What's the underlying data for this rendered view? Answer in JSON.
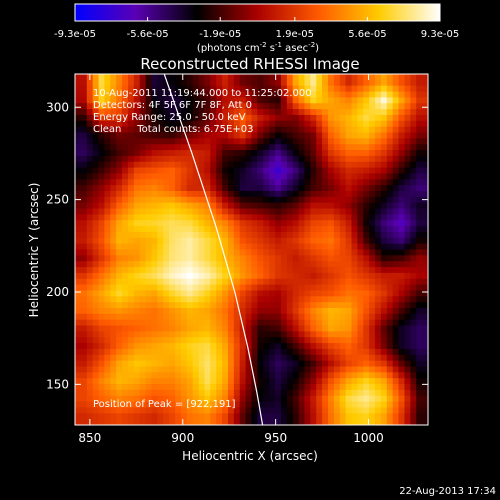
{
  "chart_data": {
    "type": "heatmap",
    "title": "Reconstructed RHESSI Image",
    "xlabel": "Heliocentric X (arcsec)",
    "ylabel": "Heliocentric Y (arcsec)",
    "xlim": [
      842,
      1032
    ],
    "ylim": [
      128,
      318
    ],
    "xticks": [
      850,
      900,
      950,
      1000
    ],
    "yticks": [
      150,
      200,
      250,
      300
    ],
    "colorbar": {
      "min": -9.3e-05,
      "max": 9.3e-05,
      "tick_values": [
        -9.3e-05,
        -5.6e-05,
        -1.9e-05,
        1.9e-05,
        5.6e-05,
        9.3e-05
      ],
      "tick_labels": [
        "-9.3e-05",
        "-5.6e-05",
        "-1.9e-05",
        "1.9e-05",
        "5.6e-05",
        "9.3e-05"
      ],
      "unit_label": "(photons cm",
      "unit_sup1": "-2",
      "unit_mid": " s",
      "unit_sup2": "-1",
      "unit_end": " asec",
      "unit_sup3": "-2",
      "unit_close": ")",
      "colors": [
        "#0000ff",
        "#5a00b4",
        "#000000",
        "#aa0000",
        "#ff5a00",
        "#ffcc00",
        "#ffffff"
      ]
    },
    "annotations": [
      "10-Aug-2011 11:19:44.000 to 11:25:02.000",
      "Detectors: 4F 5F 6F 7F 8F, Att 0",
      "Energy Range: 25.0 - 50.0 keV",
      "Clean     Total counts: 6.75E+03"
    ],
    "peak_label": "Position of Peak = [922,191]",
    "peak": [
      922,
      191
    ],
    "limb": [
      [
        890,
        318
      ],
      [
        905,
        275
      ],
      [
        918,
        235
      ],
      [
        928,
        200
      ],
      [
        935,
        170
      ],
      [
        940,
        145
      ],
      [
        943,
        128
      ]
    ],
    "image_rows": 20,
    "image_cols": 20,
    "image": [
      [
        0.05,
        0.75,
        0.45,
        0.12,
        -0.43,
        -0.35,
        -0.25,
        -0.1,
        0.12,
        -0.12,
        -0.18,
        -0.05,
        0.55,
        0.85,
        0.4,
        0.15,
        0.35,
        0.55,
        0.3,
        0.1
      ],
      [
        0.02,
        0.7,
        0.4,
        0.05,
        -0.36,
        -0.45,
        -0.33,
        -0.2,
        0.05,
        0.1,
        -0.18,
        -0.25,
        0.35,
        0.7,
        0.55,
        0.45,
        0.65,
        0.95,
        0.55,
        0.2
      ],
      [
        -0.25,
        0.2,
        0.18,
        -0.05,
        -0.28,
        -0.4,
        -0.32,
        -0.15,
        0.12,
        0.35,
        0.1,
        -0.05,
        -0.08,
        0.15,
        0.5,
        0.6,
        0.75,
        0.65,
        0.3,
        0.05
      ],
      [
        -0.45,
        -0.25,
        -0.12,
        -0.15,
        -0.2,
        -0.22,
        -0.1,
        0.0,
        0.02,
        0.2,
        -0.12,
        -0.32,
        -0.2,
        -0.1,
        0.35,
        0.55,
        0.6,
        0.4,
        0.1,
        -0.1
      ],
      [
        -0.5,
        -0.35,
        -0.2,
        -0.1,
        0.05,
        0.1,
        0.15,
        0.1,
        -0.2,
        -0.25,
        -0.4,
        -0.58,
        -0.35,
        -0.15,
        0.2,
        0.35,
        0.35,
        0.2,
        -0.05,
        -0.3
      ],
      [
        -0.35,
        -0.22,
        -0.05,
        0.25,
        0.3,
        0.35,
        0.2,
        0.05,
        -0.3,
        -0.4,
        -0.55,
        -0.78,
        -0.55,
        -0.25,
        0.0,
        0.15,
        0.1,
        0.0,
        -0.25,
        -0.45
      ],
      [
        -0.2,
        -0.05,
        0.15,
        0.4,
        0.45,
        0.35,
        0.15,
        0.15,
        -0.2,
        -0.45,
        -0.45,
        -0.6,
        -0.4,
        -0.2,
        -0.1,
        0.05,
        -0.1,
        -0.25,
        -0.45,
        -0.55
      ],
      [
        -0.1,
        0.05,
        0.35,
        0.55,
        0.6,
        0.65,
        0.55,
        0.45,
        0.1,
        -0.15,
        -0.2,
        -0.25,
        -0.15,
        0.05,
        0.05,
        -0.05,
        -0.25,
        -0.4,
        -0.55,
        -0.4
      ],
      [
        0.05,
        0.25,
        0.55,
        0.7,
        0.72,
        0.78,
        0.75,
        0.6,
        0.45,
        0.2,
        0.1,
        -0.05,
        0.05,
        0.25,
        0.3,
        0.1,
        -0.3,
        -0.55,
        -0.7,
        -0.45
      ],
      [
        0.1,
        0.3,
        0.6,
        0.55,
        0.6,
        0.8,
        0.88,
        0.75,
        0.6,
        0.3,
        0.2,
        0.1,
        0.2,
        0.35,
        0.4,
        0.2,
        -0.2,
        -0.45,
        -0.55,
        -0.3
      ],
      [
        -0.05,
        0.2,
        0.45,
        0.5,
        0.65,
        0.82,
        0.88,
        0.75,
        0.6,
        0.45,
        0.3,
        0.2,
        0.1,
        0.2,
        0.3,
        0.25,
        0.05,
        -0.25,
        -0.2,
        -0.05
      ],
      [
        0.2,
        0.4,
        0.6,
        0.7,
        0.78,
        0.92,
        1.0,
        0.9,
        0.7,
        0.5,
        0.35,
        0.2,
        0.15,
        0.1,
        0.2,
        0.3,
        0.2,
        0.1,
        0.1,
        0.0
      ],
      [
        0.4,
        0.55,
        0.72,
        0.6,
        0.55,
        0.72,
        0.85,
        0.7,
        0.5,
        0.25,
        0.05,
        0.0,
        0.15,
        0.25,
        0.3,
        0.4,
        0.35,
        0.2,
        0.0,
        -0.2
      ],
      [
        0.35,
        0.45,
        0.5,
        0.45,
        0.4,
        0.5,
        0.6,
        0.55,
        0.4,
        0.15,
        -0.05,
        -0.05,
        0.2,
        0.45,
        0.6,
        0.55,
        0.3,
        0.05,
        -0.2,
        -0.4
      ],
      [
        0.1,
        0.25,
        0.3,
        0.35,
        0.4,
        0.45,
        0.55,
        0.6,
        0.45,
        0.1,
        -0.25,
        -0.2,
        0.05,
        0.35,
        0.55,
        0.5,
        0.2,
        -0.15,
        -0.4,
        -0.5
      ],
      [
        0.0,
        0.15,
        0.35,
        0.5,
        0.55,
        0.6,
        0.7,
        0.75,
        0.55,
        0.15,
        -0.3,
        -0.4,
        -0.2,
        0.05,
        0.25,
        0.35,
        0.2,
        -0.1,
        -0.4,
        -0.5
      ],
      [
        0.1,
        0.3,
        0.55,
        0.65,
        0.6,
        0.55,
        0.65,
        0.8,
        0.6,
        0.1,
        -0.35,
        -0.5,
        -0.4,
        -0.2,
        0.05,
        0.25,
        0.35,
        0.2,
        -0.15,
        -0.4
      ],
      [
        0.25,
        0.45,
        0.6,
        0.55,
        0.45,
        0.45,
        0.55,
        0.78,
        0.55,
        0.05,
        -0.3,
        -0.45,
        -0.3,
        -0.05,
        0.3,
        0.55,
        0.7,
        0.55,
        0.15,
        -0.3
      ],
      [
        0.25,
        0.35,
        0.45,
        0.4,
        0.3,
        0.35,
        0.5,
        0.65,
        0.45,
        -0.05,
        -0.35,
        -0.4,
        -0.2,
        0.1,
        0.45,
        0.75,
        0.85,
        0.7,
        0.3,
        -0.2
      ],
      [
        0.15,
        0.2,
        0.25,
        0.2,
        0.15,
        0.25,
        0.4,
        0.45,
        0.25,
        -0.15,
        -0.45,
        -0.45,
        -0.25,
        0.05,
        0.4,
        0.65,
        0.7,
        0.55,
        0.2,
        -0.25
      ]
    ]
  },
  "footer": {
    "timestamp": "22-Aug-2013 17:34"
  }
}
